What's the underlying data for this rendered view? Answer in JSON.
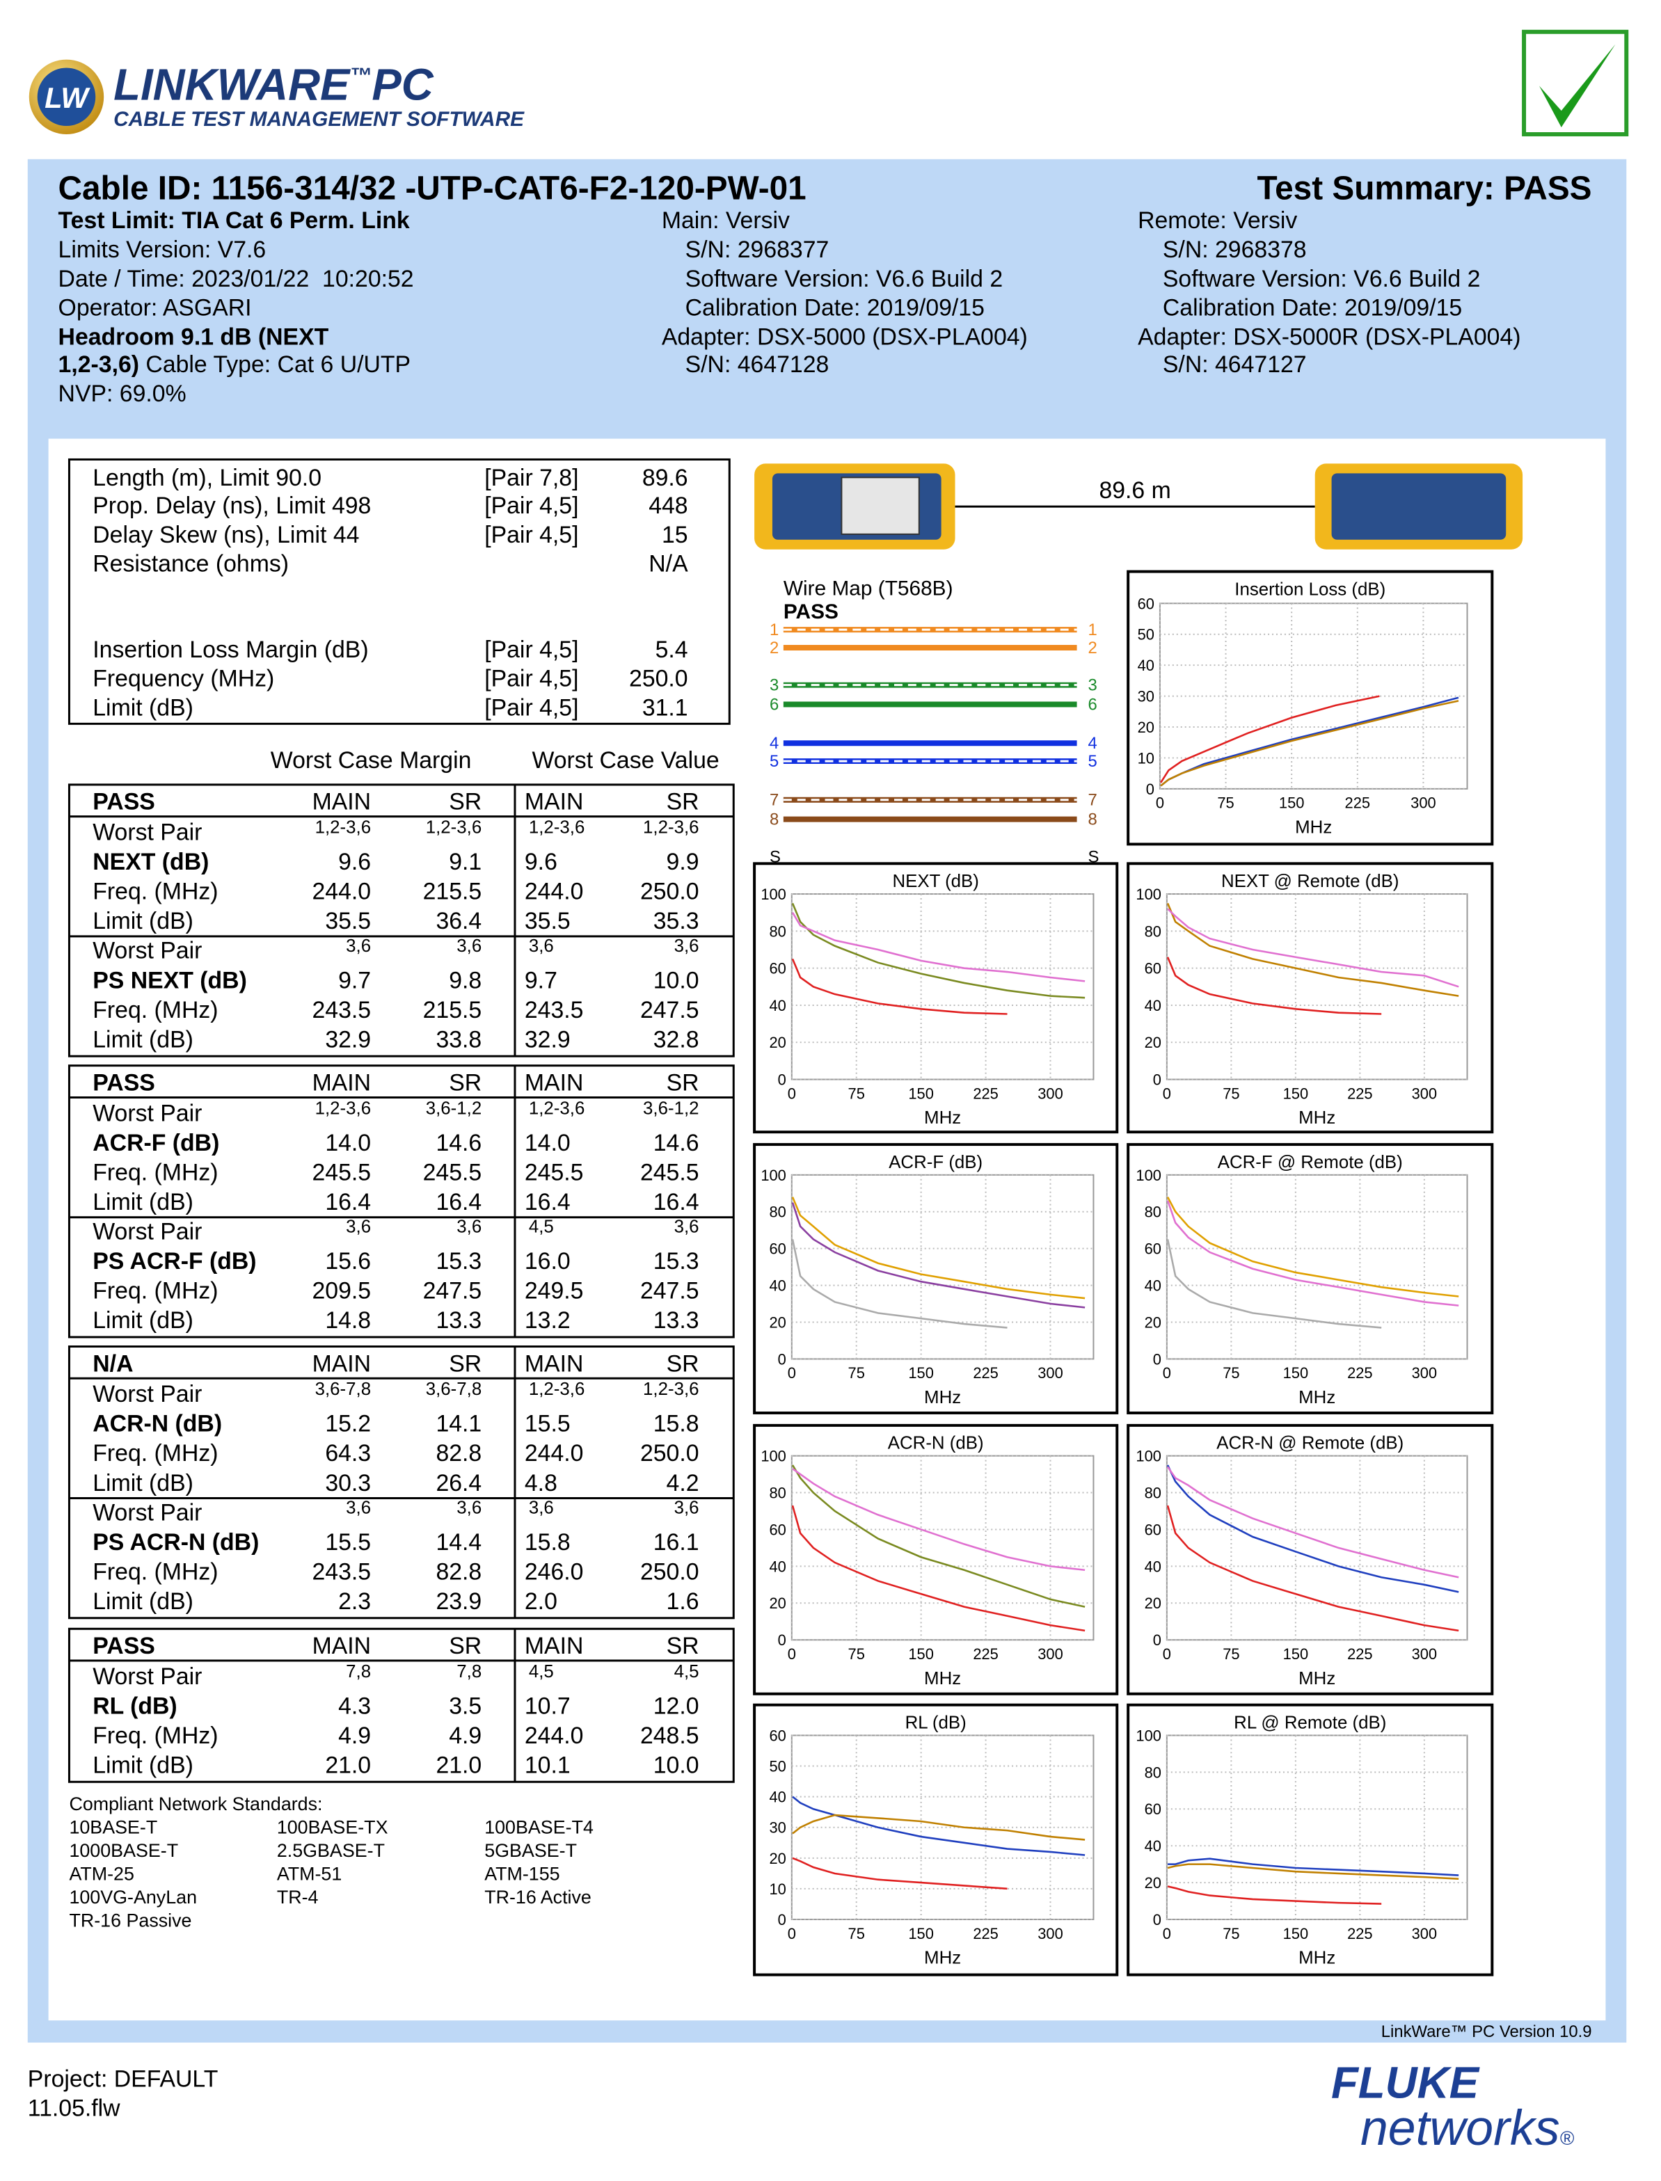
{
  "header": {
    "logo": "LW",
    "product": "LINKWARE",
    "tm": "™",
    "pc": "PC",
    "subtitle": "CABLE TEST MANAGEMENT SOFTWARE"
  },
  "summary": {
    "cable_id": "Cable ID: 1156-314/32 -UTP-CAT6-F2-120-PW-01",
    "result": "Test Summary: PASS"
  },
  "info": {
    "left": [
      "Test Limit: TIA Cat 6 Perm. Link",
      "Limits Version: V7.6",
      "Date / Time: 2023/01/22  10:20:52",
      "Operator: ASGARI",
      "Headroom 9.1 dB (NEXT",
      "1,2-3,6)",
      " Cable Type: Cat 6 U/UTP",
      "NVP: 69.0%"
    ],
    "main": [
      "Main: Versiv",
      "S/N: 2968377",
      "Software Version: V6.6 Build 2",
      "Calibration Date: 2019/09/15",
      "Adapter: DSX-5000 (DSX-PLA004)",
      "S/N: 4647128"
    ],
    "remote": [
      "Remote: Versiv",
      "S/N: 2968378",
      "Software Version: V6.6 Build 2",
      "Calibration Date: 2019/09/15",
      "Adapter: DSX-5000R (DSX-PLA004)",
      "S/N: 4647127"
    ]
  },
  "measurements": [
    {
      "label": "Length (m), Limit 90.0",
      "pair": "[Pair 7,8]",
      "value": "89.6"
    },
    {
      "label": "Prop. Delay (ns), Limit 498",
      "pair": "[Pair 4,5]",
      "value": "448"
    },
    {
      "label": "Delay Skew (ns), Limit 44",
      "pair": "[Pair 4,5]",
      "value": "15"
    },
    {
      "label": "Resistance (ohms)",
      "value": "N/A"
    },
    {
      "label": "Insertion Loss Margin (dB)",
      "pair": "[Pair 4,5]",
      "value": "5.4"
    },
    {
      "label": "Frequency (MHz)",
      "pair": "[Pair 4,5]",
      "value": "250.0"
    },
    {
      "label": "Limit (dB)",
      "pair": "[Pair 4,5]",
      "value": "31.1"
    }
  ],
  "worst_case": {
    "margin": "Worst Case Margin",
    "value": "Worst Case Value"
  },
  "sections": [
    {
      "status": "PASS",
      "cols": [
        "MAIN",
        "SR",
        "MAIN",
        "SR"
      ],
      "rows": [
        [
          "Worst Pair",
          "1,2-3,6",
          "1,2-3,6",
          "1,2-3,6",
          "1,2-3,6"
        ],
        [
          "NEXT (dB)",
          "9.6",
          "9.1",
          "9.6",
          "9.9"
        ],
        [
          "Freq. (MHz)",
          "244.0",
          "215.5",
          "244.0",
          "250.0"
        ],
        [
          "Limit (dB)",
          "35.5",
          "36.4",
          "35.5",
          "35.3"
        ],
        [
          "Worst Pair",
          "3,6",
          "3,6",
          "3,6",
          "3,6"
        ],
        [
          "PS NEXT (dB)",
          "9.7",
          "9.8",
          "9.7",
          "10.0"
        ],
        [
          "Freq. (MHz)",
          "243.5",
          "215.5",
          "243.5",
          "247.5"
        ],
        [
          "Limit (dB)",
          "32.9",
          "33.8",
          "32.9",
          "32.8"
        ]
      ]
    },
    {
      "status": "PASS",
      "cols": [
        "MAIN",
        "SR",
        "MAIN",
        "SR"
      ],
      "rows": [
        [
          "Worst Pair",
          "1,2-3,6",
          "3,6-1,2",
          "1,2-3,6",
          "3,6-1,2"
        ],
        [
          "ACR-F (dB)",
          "14.0",
          "14.6",
          "14.0",
          "14.6"
        ],
        [
          "Freq. (MHz)",
          "245.5",
          "245.5",
          "245.5",
          "245.5"
        ],
        [
          "Limit (dB)",
          "16.4",
          "16.4",
          "16.4",
          "16.4"
        ],
        [
          "Worst Pair",
          "3,6",
          "3,6",
          "4,5",
          "3,6"
        ],
        [
          "PS ACR-F (dB)",
          "15.6",
          "15.3",
          "16.0",
          "15.3"
        ],
        [
          "Freq. (MHz)",
          "209.5",
          "247.5",
          "249.5",
          "247.5"
        ],
        [
          "Limit (dB)",
          "14.8",
          "13.3",
          "13.2",
          "13.3"
        ]
      ]
    },
    {
      "status": "N/A",
      "cols": [
        "MAIN",
        "SR",
        "MAIN",
        "SR"
      ],
      "rows": [
        [
          "Worst Pair",
          "3,6-7,8",
          "3,6-7,8",
          "1,2-3,6",
          "1,2-3,6"
        ],
        [
          "ACR-N (dB)",
          "15.2",
          "14.1",
          "15.5",
          "15.8"
        ],
        [
          "Freq. (MHz)",
          "64.3",
          "82.8",
          "244.0",
          "250.0"
        ],
        [
          "Limit (dB)",
          "30.3",
          "26.4",
          "4.8",
          "4.2"
        ],
        [
          "Worst Pair",
          "3,6",
          "3,6",
          "3,6",
          "3,6"
        ],
        [
          "PS ACR-N (dB)",
          "15.5",
          "14.4",
          "15.8",
          "16.1"
        ],
        [
          "Freq. (MHz)",
          "243.5",
          "82.8",
          "246.0",
          "250.0"
        ],
        [
          "Limit (dB)",
          "2.3",
          "23.9",
          "2.0",
          "1.6"
        ]
      ]
    },
    {
      "status": "PASS",
      "cols": [
        "MAIN",
        "SR",
        "MAIN",
        "SR"
      ],
      "rows": [
        [
          "Worst Pair",
          "7,8",
          "7,8",
          "4,5",
          "4,5"
        ],
        [
          "RL (dB)",
          "4.3",
          "3.5",
          "10.7",
          "12.0"
        ],
        [
          "Freq. (MHz)",
          "4.9",
          "4.9",
          "244.0",
          "248.5"
        ],
        [
          "Limit (dB)",
          "21.0",
          "21.0",
          "10.1",
          "10.0"
        ]
      ]
    }
  ],
  "standards": {
    "title": "Compliant Network Standards:",
    "items": [
      "10BASE-T",
      "100BASE-TX",
      "100BASE-T4",
      "1000BASE-T",
      "2.5GBASE-T",
      "5GBASE-T",
      "ATM-25",
      "ATM-51",
      "ATM-155",
      "100VG-AnyLan",
      "TR-4",
      "TR-16 Active",
      "TR-16 Passive"
    ]
  },
  "link": {
    "length": "89.6 m"
  },
  "wire_map": {
    "title": "Wire Map (T568B)",
    "result": "PASS",
    "left": [
      "1",
      "2",
      "3",
      "6",
      "4",
      "5",
      "7",
      "8",
      "S"
    ],
    "right": [
      "1",
      "2",
      "3",
      "6",
      "4",
      "5",
      "7",
      "8",
      "S"
    ]
  },
  "chart_data": [
    {
      "type": "line",
      "title": "Insertion Loss (dB)",
      "xlabel": "MHz",
      "xlim": [
        0,
        350
      ],
      "xticks": [
        0,
        75,
        150,
        225,
        300
      ],
      "ylim": [
        0,
        60
      ],
      "yticks": [
        0,
        10,
        20,
        30,
        40,
        50,
        60
      ],
      "grid": true,
      "x": [
        1,
        10,
        25,
        50,
        100,
        150,
        200,
        250,
        300,
        340
      ],
      "series": [
        {
          "color": "#e02020",
          "values": [
            2,
            6,
            9,
            12,
            18,
            23,
            27,
            30,
            null,
            null
          ]
        },
        {
          "color": "#1f3fbf",
          "values": [
            1,
            3,
            5,
            8,
            12,
            16,
            19.5,
            23,
            26.5,
            29.5
          ]
        },
        {
          "color": "#c08000",
          "values": [
            1,
            3,
            5,
            7.5,
            11.5,
            15.5,
            19,
            22.5,
            26,
            28.5
          ]
        }
      ]
    },
    {
      "type": "line",
      "title": "NEXT (dB)",
      "xlabel": "MHz",
      "xlim": [
        0,
        350
      ],
      "xticks": [
        0,
        75,
        150,
        225,
        300
      ],
      "ylim": [
        0,
        100
      ],
      "yticks": [
        0,
        20,
        40,
        60,
        80,
        100
      ],
      "grid": true,
      "x": [
        1,
        10,
        25,
        50,
        100,
        150,
        200,
        250,
        300,
        340
      ],
      "series": [
        {
          "color": "#e02020",
          "values": [
            65,
            55,
            50,
            46,
            41,
            38,
            36,
            35.3,
            null,
            null
          ]
        },
        {
          "color": "#7a8a20",
          "values": [
            95,
            85,
            78,
            72,
            63,
            57,
            52,
            48,
            45,
            44
          ]
        },
        {
          "color": "#e070d0",
          "values": [
            90,
            83,
            80,
            75,
            70,
            64,
            60,
            58,
            55,
            53
          ]
        }
      ]
    },
    {
      "type": "line",
      "title": "NEXT @ Remote (dB)",
      "xlabel": "MHz",
      "xlim": [
        0,
        350
      ],
      "xticks": [
        0,
        75,
        150,
        225,
        300
      ],
      "ylim": [
        0,
        100
      ],
      "yticks": [
        0,
        20,
        40,
        60,
        80,
        100
      ],
      "grid": true,
      "x": [
        1,
        10,
        25,
        50,
        100,
        150,
        200,
        250,
        300,
        340
      ],
      "series": [
        {
          "color": "#e02020",
          "values": [
            66,
            56,
            51,
            46,
            41,
            38,
            36,
            35.3,
            null,
            null
          ]
        },
        {
          "color": "#c08000",
          "values": [
            95,
            85,
            80,
            72,
            65,
            60,
            55,
            52,
            48,
            45
          ]
        },
        {
          "color": "#e070d0",
          "values": [
            92,
            88,
            82,
            76,
            70,
            66,
            62,
            58,
            56,
            50
          ]
        }
      ]
    },
    {
      "type": "line",
      "title": "ACR-F (dB)",
      "xlabel": "MHz",
      "xlim": [
        0,
        350
      ],
      "xticks": [
        0,
        75,
        150,
        225,
        300
      ],
      "ylim": [
        0,
        100
      ],
      "yticks": [
        0,
        20,
        40,
        60,
        80,
        100
      ],
      "grid": true,
      "x": [
        1,
        10,
        25,
        50,
        100,
        150,
        200,
        250,
        300,
        340
      ],
      "series": [
        {
          "color": "#aaaaaa",
          "values": [
            65,
            45,
            38,
            31,
            25,
            22,
            19,
            17,
            null,
            null
          ]
        },
        {
          "color": "#8a3fa0",
          "values": [
            85,
            72,
            65,
            58,
            48,
            42,
            38,
            34,
            30,
            28
          ]
        },
        {
          "color": "#e0a000",
          "values": [
            88,
            78,
            72,
            62,
            52,
            46,
            42,
            38,
            35,
            33
          ]
        }
      ]
    },
    {
      "type": "line",
      "title": "ACR-F @ Remote (dB)",
      "xlabel": "MHz",
      "xlim": [
        0,
        350
      ],
      "xticks": [
        0,
        75,
        150,
        225,
        300
      ],
      "ylim": [
        0,
        100
      ],
      "yticks": [
        0,
        20,
        40,
        60,
        80,
        100
      ],
      "grid": true,
      "x": [
        1,
        10,
        25,
        50,
        100,
        150,
        200,
        250,
        300,
        340
      ],
      "series": [
        {
          "color": "#aaaaaa",
          "values": [
            65,
            45,
            38,
            31,
            25,
            22,
            19,
            17,
            null,
            null
          ]
        },
        {
          "color": "#e070d0",
          "values": [
            86,
            74,
            66,
            58,
            49,
            43,
            39,
            35,
            31,
            29
          ]
        },
        {
          "color": "#e0a000",
          "values": [
            88,
            80,
            72,
            63,
            53,
            47,
            43,
            39,
            36,
            34
          ]
        }
      ]
    },
    {
      "type": "line",
      "title": "ACR-N (dB)",
      "xlabel": "MHz",
      "xlim": [
        0,
        350
      ],
      "xticks": [
        0,
        75,
        150,
        225,
        300
      ],
      "ylim": [
        0,
        100
      ],
      "yticks": [
        0,
        20,
        40,
        60,
        80,
        100
      ],
      "grid": true,
      "x": [
        1,
        10,
        25,
        50,
        100,
        150,
        200,
        250,
        300,
        340
      ],
      "series": [
        {
          "color": "#e02020",
          "values": [
            73,
            58,
            50,
            42,
            32,
            25,
            18,
            13,
            8,
            5
          ]
        },
        {
          "color": "#7a8a20",
          "values": [
            95,
            88,
            80,
            70,
            55,
            45,
            38,
            30,
            22,
            18
          ]
        },
        {
          "color": "#e070d0",
          "values": [
            93,
            90,
            85,
            78,
            68,
            60,
            52,
            45,
            40,
            38
          ]
        }
      ]
    },
    {
      "type": "line",
      "title": "ACR-N @ Remote (dB)",
      "xlabel": "MHz",
      "xlim": [
        0,
        350
      ],
      "xticks": [
        0,
        75,
        150,
        225,
        300
      ],
      "ylim": [
        0,
        100
      ],
      "yticks": [
        0,
        20,
        40,
        60,
        80,
        100
      ],
      "grid": true,
      "x": [
        1,
        10,
        25,
        50,
        100,
        150,
        200,
        250,
        300,
        340
      ],
      "series": [
        {
          "color": "#e02020",
          "values": [
            73,
            58,
            50,
            42,
            32,
            25,
            18,
            13,
            8,
            5
          ]
        },
        {
          "color": "#1f3fbf",
          "values": [
            95,
            86,
            78,
            68,
            56,
            48,
            40,
            34,
            30,
            26
          ]
        },
        {
          "color": "#e070d0",
          "values": [
            94,
            88,
            84,
            76,
            66,
            58,
            50,
            44,
            38,
            34
          ]
        }
      ]
    },
    {
      "type": "line",
      "title": "RL (dB)",
      "xlabel": "MHz",
      "xlim": [
        0,
        350
      ],
      "xticks": [
        0,
        75,
        150,
        225,
        300
      ],
      "ylim": [
        0,
        60
      ],
      "yticks": [
        0,
        10,
        20,
        30,
        40,
        50,
        60
      ],
      "grid": true,
      "x": [
        1,
        10,
        25,
        50,
        100,
        150,
        200,
        250,
        300,
        340
      ],
      "series": [
        {
          "color": "#e02020",
          "values": [
            20,
            19,
            17,
            15,
            13,
            12,
            11,
            10,
            null,
            null
          ]
        },
        {
          "color": "#1f3fbf",
          "values": [
            40,
            38,
            36,
            34,
            30,
            27,
            25,
            23,
            22,
            21
          ]
        },
        {
          "color": "#c08000",
          "values": [
            28,
            30,
            32,
            34,
            33,
            32,
            30,
            29,
            27,
            26
          ]
        }
      ]
    },
    {
      "type": "line",
      "title": "RL @ Remote (dB)",
      "xlabel": "MHz",
      "xlim": [
        0,
        350
      ],
      "xticks": [
        0,
        75,
        150,
        225,
        300
      ],
      "ylim": [
        0,
        100
      ],
      "yticks": [
        0,
        20,
        40,
        60,
        80,
        100
      ],
      "grid": true,
      "x": [
        1,
        10,
        25,
        50,
        100,
        150,
        200,
        250,
        300,
        340
      ],
      "series": [
        {
          "color": "#e02020",
          "values": [
            18,
            17,
            15,
            13,
            11,
            10,
            9,
            8.5,
            null,
            null
          ]
        },
        {
          "color": "#1f3fbf",
          "values": [
            30,
            30,
            32,
            33,
            30,
            28,
            27,
            26,
            25,
            24
          ]
        },
        {
          "color": "#c08000",
          "values": [
            28,
            29,
            30,
            30,
            28,
            26,
            25,
            24,
            23,
            22
          ]
        }
      ]
    }
  ],
  "footer": {
    "version": "LinkWare™ PC Version 10.9",
    "project": "Project: DEFAULT",
    "file": "11.05.flw",
    "fluke": "FLUKE",
    "networks": "networks",
    "reg": "®"
  }
}
